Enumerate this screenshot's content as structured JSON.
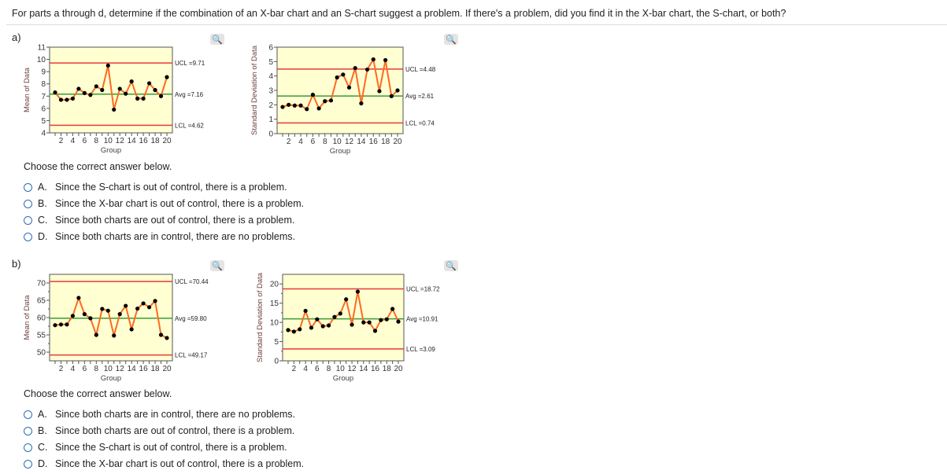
{
  "question": "For parts a through d, determine if the combination of an X-bar chart and an S-chart suggest a problem. If there's a problem, did you find it in the X-bar chart, the S-chart, or both?",
  "colors": {
    "plot_bg": "#ffffd2",
    "series": "#ff6a21",
    "point": "#000000",
    "limit": "#e83a3a",
    "avg": "#3a9a3a",
    "radio": "#2a6ebb"
  },
  "parts": [
    {
      "label": "a)",
      "choose": "Choose the correct answer below.",
      "options": [
        {
          "letter": "A.",
          "text": "Since the S-chart is out of control, there is a problem."
        },
        {
          "letter": "B.",
          "text": "Since the X-bar chart is out of control, there is a problem."
        },
        {
          "letter": "C.",
          "text": "Since both charts are out of control, there is a problem."
        },
        {
          "letter": "D.",
          "text": "Since both charts are in control, there are no problems."
        }
      ]
    },
    {
      "label": "b)",
      "choose": "Choose the correct answer below.",
      "options": [
        {
          "letter": "A.",
          "text": "Since both charts are in control, there are no problems."
        },
        {
          "letter": "B.",
          "text": "Since both charts are out of control, there is a problem."
        },
        {
          "letter": "C.",
          "text": "Since the S-chart is out of control, there is a problem."
        },
        {
          "letter": "D.",
          "text": "Since the X-bar chart is out of control, there is a problem."
        }
      ]
    }
  ],
  "zoom_icon": "magnifier-icon",
  "chart_data": [
    {
      "type": "line",
      "part": "a",
      "xlabel": "Group",
      "ylabel": "Mean of Data",
      "x": [
        1,
        2,
        3,
        4,
        5,
        6,
        7,
        8,
        9,
        10,
        11,
        12,
        13,
        14,
        15,
        16,
        17,
        18,
        19,
        20
      ],
      "xticks": [
        2,
        4,
        6,
        8,
        10,
        12,
        14,
        16,
        18,
        20
      ],
      "ylim": [
        4,
        11
      ],
      "yticks": [
        4,
        5,
        6,
        7,
        8,
        9,
        10,
        11
      ],
      "values": [
        7.3,
        6.7,
        6.7,
        6.8,
        7.6,
        7.25,
        7.1,
        7.8,
        7.5,
        9.5,
        5.9,
        7.6,
        7.2,
        8.2,
        6.8,
        6.8,
        8.05,
        7.5,
        7.0,
        8.55
      ],
      "lines": [
        {
          "label": "UCL =9.71",
          "value": 9.71,
          "kind": "limit"
        },
        {
          "label": "Avg =7.16",
          "value": 7.16,
          "kind": "avg"
        },
        {
          "label": "LCL =4.62",
          "value": 4.62,
          "kind": "limit"
        }
      ]
    },
    {
      "type": "line",
      "part": "a",
      "xlabel": "Group",
      "ylabel": "Standard Deviation of Data",
      "x": [
        1,
        2,
        3,
        4,
        5,
        6,
        7,
        8,
        9,
        10,
        11,
        12,
        13,
        14,
        15,
        16,
        17,
        18,
        19,
        20
      ],
      "xticks": [
        2,
        4,
        6,
        8,
        10,
        12,
        14,
        16,
        18,
        20
      ],
      "ylim": [
        0,
        6
      ],
      "yticks": [
        0,
        1,
        2,
        3,
        4,
        5,
        6
      ],
      "values": [
        1.85,
        2.0,
        1.95,
        1.95,
        1.7,
        2.7,
        1.75,
        2.25,
        2.3,
        3.9,
        4.1,
        3.2,
        4.55,
        2.1,
        4.45,
        5.15,
        2.95,
        5.1,
        2.6,
        3.0
      ],
      "lines": [
        {
          "label": "UCL =4.48",
          "value": 4.48,
          "kind": "limit"
        },
        {
          "label": "Avg =2.61",
          "value": 2.61,
          "kind": "avg"
        },
        {
          "label": "LCL =0.74",
          "value": 0.74,
          "kind": "limit"
        }
      ]
    },
    {
      "type": "line",
      "part": "b",
      "xlabel": "Group",
      "ylabel": "Mean of Data",
      "x": [
        1,
        2,
        3,
        4,
        5,
        6,
        7,
        8,
        9,
        10,
        11,
        12,
        13,
        14,
        15,
        16,
        17,
        18,
        19,
        20
      ],
      "xticks": [
        2,
        4,
        6,
        8,
        10,
        12,
        14,
        16,
        18,
        20
      ],
      "ylim": [
        47.5,
        72.5
      ],
      "yticks": [
        50,
        55,
        60,
        65,
        70
      ],
      "values": [
        57.8,
        58,
        58,
        60.5,
        65.7,
        61,
        59.8,
        55,
        62.5,
        62,
        54.8,
        61,
        63.4,
        56.6,
        62.6,
        64.1,
        63,
        64.8,
        55,
        54.1
      ],
      "lines": [
        {
          "label": "UCL =70.44",
          "value": 70.44,
          "kind": "limit"
        },
        {
          "label": "Avg =59.80",
          "value": 59.8,
          "kind": "avg"
        },
        {
          "label": "LCL =49.17",
          "value": 49.17,
          "kind": "limit"
        }
      ]
    },
    {
      "type": "line",
      "part": "b",
      "xlabel": "Group",
      "ylabel": "Standard Deviation of Data",
      "x": [
        1,
        2,
        3,
        4,
        5,
        6,
        7,
        8,
        9,
        10,
        11,
        12,
        13,
        14,
        15,
        16,
        17,
        18,
        19,
        20
      ],
      "xticks": [
        2,
        4,
        6,
        8,
        10,
        12,
        14,
        16,
        18,
        20
      ],
      "ylim": [
        0,
        22.5
      ],
      "yticks": [
        0,
        5,
        10,
        15,
        20
      ],
      "values": [
        8,
        7.6,
        8.2,
        13,
        8.6,
        10.8,
        9,
        9.2,
        11.4,
        12.3,
        16,
        9.4,
        18,
        10,
        10,
        7.8,
        10.6,
        10.8,
        13.5,
        10.2
      ],
      "lines": [
        {
          "label": "UCL =18.72",
          "value": 18.72,
          "kind": "limit"
        },
        {
          "label": "Avg =10.91",
          "value": 10.91,
          "kind": "avg"
        },
        {
          "label": "LCL =3.09",
          "value": 3.09,
          "kind": "limit"
        }
      ]
    }
  ]
}
